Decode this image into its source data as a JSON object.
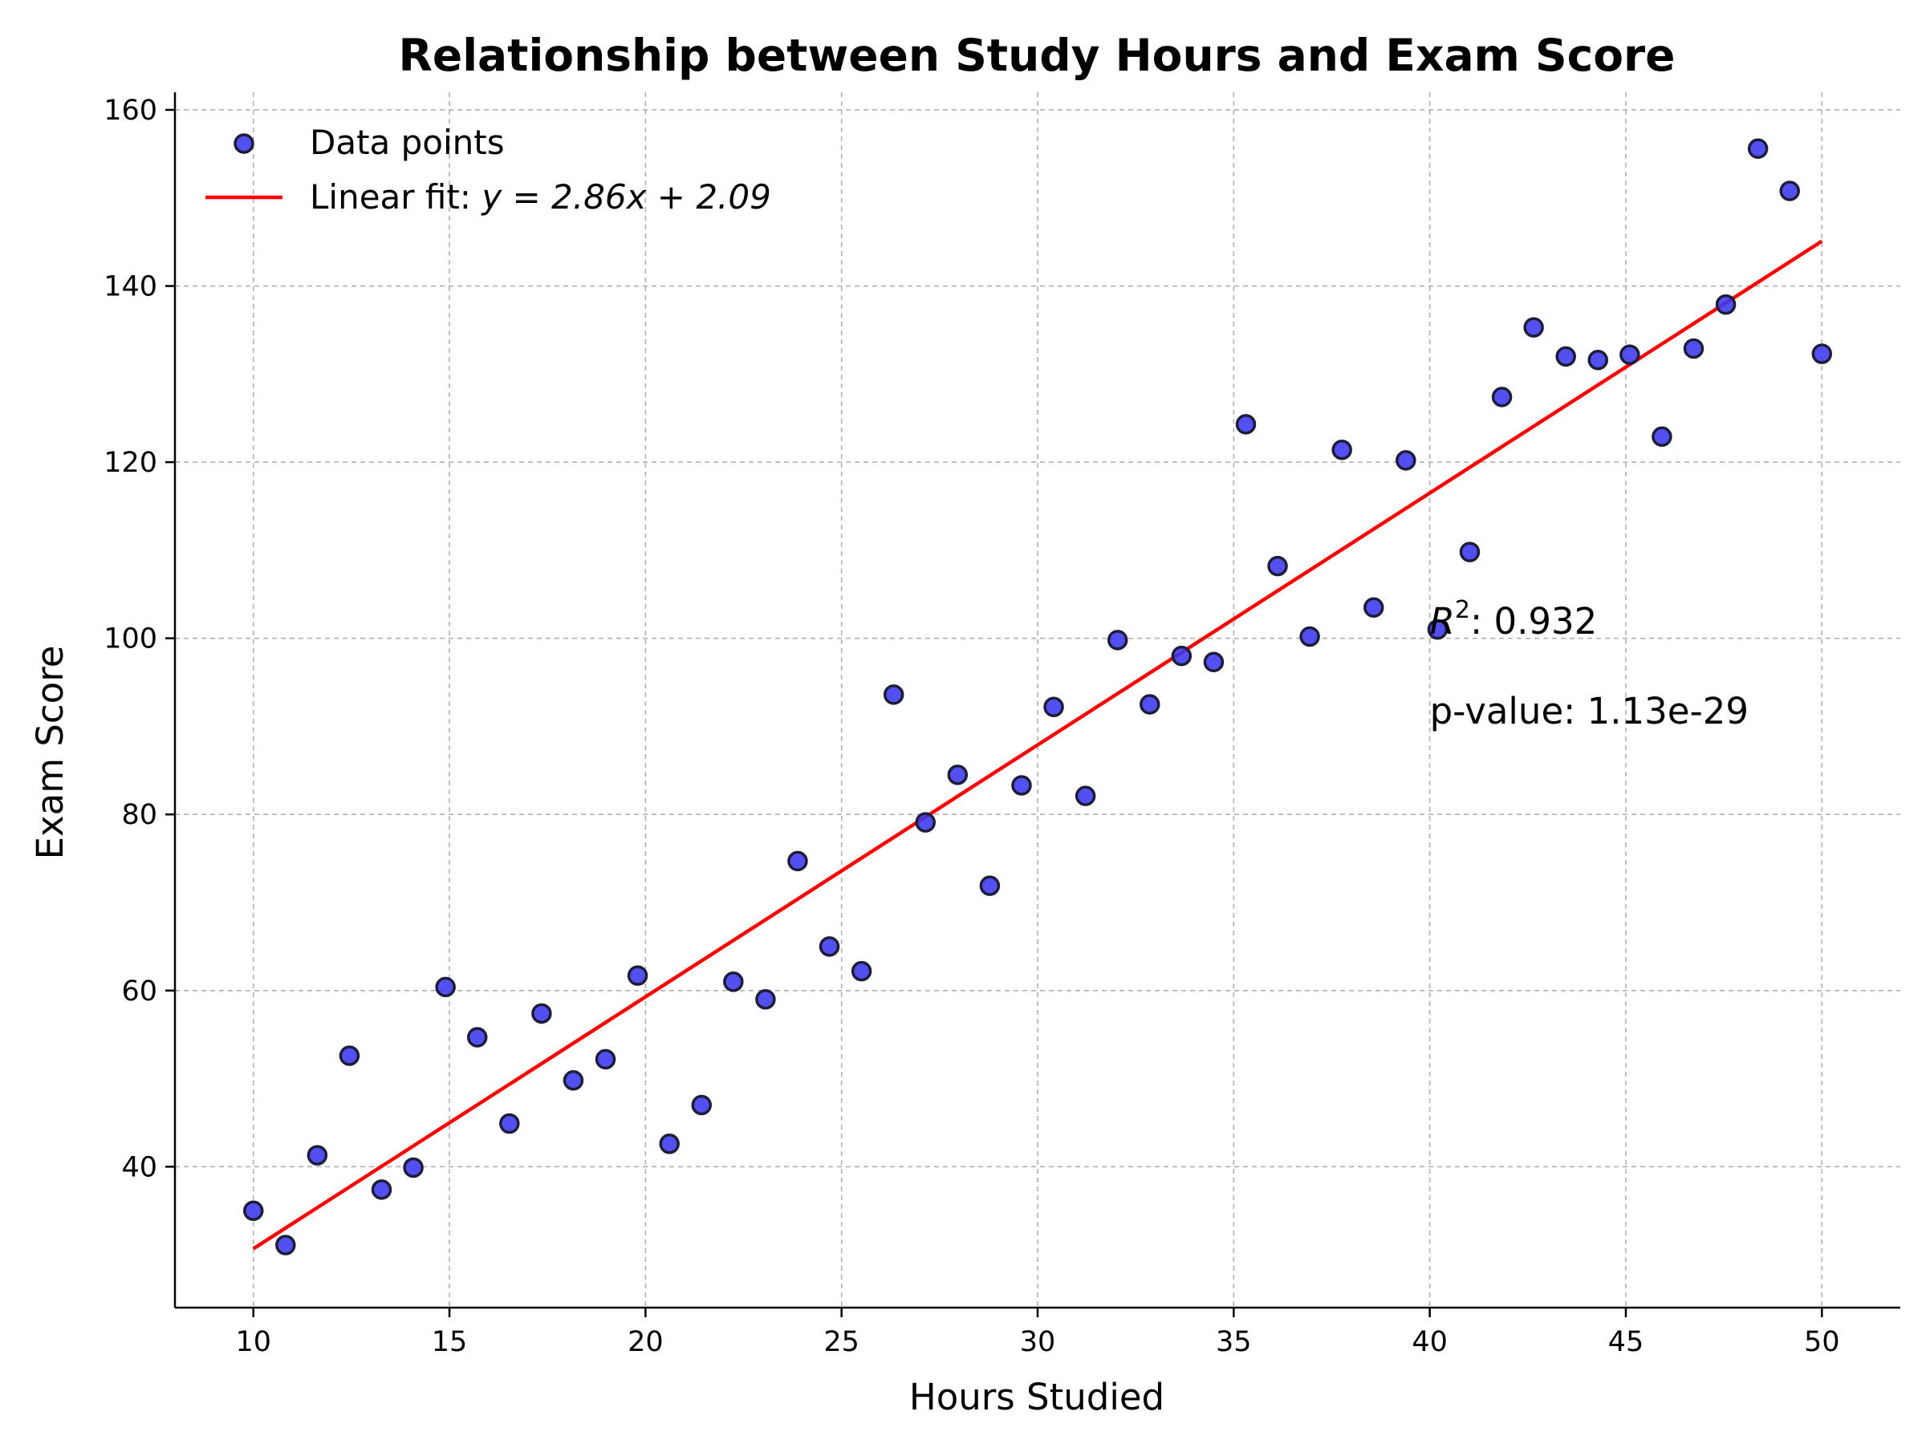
{
  "chart_data": {
    "type": "scatter",
    "title": "Relationship between Study Hours and Exam Score",
    "xlabel": "Hours Studied",
    "ylabel": "Exam Score",
    "xlim": [
      8,
      52
    ],
    "ylim": [
      24,
      162
    ],
    "x_ticks": [
      10,
      15,
      20,
      25,
      30,
      35,
      40,
      45,
      50
    ],
    "y_ticks": [
      40,
      60,
      80,
      100,
      120,
      140,
      160
    ],
    "grid": true,
    "legend_position": "top-left",
    "series": [
      {
        "name": "Data points",
        "kind": "scatter",
        "color": "#3b38f0",
        "edge_color": "#1d1d3a",
        "x": [
          10.0,
          10.82,
          11.63,
          12.45,
          13.27,
          14.08,
          14.9,
          15.71,
          16.53,
          17.35,
          18.16,
          18.98,
          19.8,
          20.61,
          21.43,
          22.24,
          23.06,
          23.88,
          24.69,
          25.51,
          26.33,
          27.14,
          27.96,
          28.78,
          29.59,
          30.41,
          31.22,
          32.04,
          32.86,
          33.67,
          34.49,
          35.31,
          36.12,
          36.94,
          37.76,
          38.57,
          39.39,
          40.2,
          41.02,
          41.84,
          42.65,
          43.47,
          44.29,
          45.1,
          45.92,
          46.73,
          47.55,
          48.37,
          49.18,
          50.0
        ],
        "y": [
          35.0,
          31.1,
          41.3,
          52.6,
          37.4,
          39.9,
          60.4,
          54.7,
          44.9,
          57.4,
          49.8,
          52.2,
          61.7,
          42.6,
          47.0,
          61.0,
          59.0,
          74.7,
          65.0,
          62.2,
          93.6,
          79.1,
          84.5,
          71.9,
          83.3,
          92.2,
          82.1,
          99.8,
          92.5,
          98.0,
          97.3,
          124.3,
          108.2,
          100.2,
          121.4,
          103.5,
          120.2,
          101.0,
          109.8,
          127.4,
          135.3,
          132.0,
          131.6,
          132.2,
          122.9,
          132.9,
          137.9,
          155.6,
          150.8,
          132.3
        ]
      },
      {
        "name": "Linear fit: ",
        "equation": "y = 2.86x + 2.09",
        "kind": "line",
        "color": "#ff0000",
        "slope": 2.86,
        "intercept": 2.09,
        "x": [
          10,
          50
        ]
      }
    ],
    "annotations": [
      {
        "text": ": 0.932",
        "prefix": "R",
        "superscript": "2",
        "x": 40,
        "y": 100.5
      },
      {
        "text": "p-value: 1.13e-29",
        "x": 40,
        "y": 90.3
      }
    ]
  }
}
